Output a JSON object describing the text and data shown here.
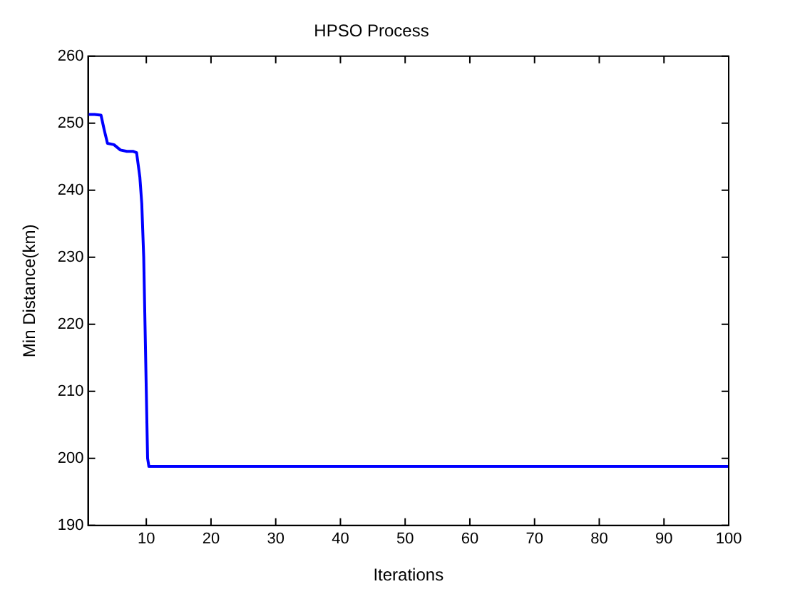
{
  "chart_data": {
    "type": "line",
    "title": "HPSO Process",
    "xlabel": "Iterations",
    "ylabel": "Min Distance(km)",
    "x": [
      1,
      2,
      3,
      3.5,
      4,
      5,
      6,
      7,
      8,
      8.5,
      9,
      9.3,
      9.6,
      9.8,
      10,
      10.2,
      10.4,
      20,
      40,
      60,
      80,
      100
    ],
    "series": [
      {
        "color": "#0000ff",
        "values": [
          251.3,
          251.3,
          251.2,
          249,
          247,
          246.8,
          246,
          245.8,
          245.8,
          245.6,
          242,
          238,
          230,
          220,
          210,
          200,
          198.8,
          198.8,
          198.8,
          198.8,
          198.8,
          198.8
        ]
      }
    ],
    "xlim": [
      1,
      100
    ],
    "xticks": [
      10,
      20,
      30,
      40,
      50,
      60,
      70,
      80,
      90,
      100
    ],
    "ylim": [
      190,
      260
    ],
    "yticks": [
      190,
      200,
      210,
      220,
      230,
      240,
      250,
      260
    ],
    "grid": false,
    "legend": false,
    "marker": "none",
    "line_style": "solid"
  }
}
